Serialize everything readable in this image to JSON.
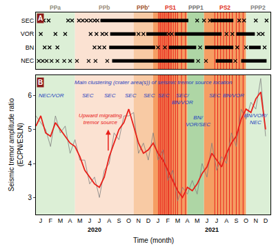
{
  "chart_data": [
    {
      "type": "scatter",
      "panel_label": "A",
      "tick_labels": "y",
      "categories": [
        "SEC",
        "VOR",
        "BN",
        "NEC"
      ],
      "xlim": [
        0,
        24
      ],
      "phases": [
        {
          "label": "PPa",
          "start": 0,
          "end": 4,
          "color": "#dcefd6",
          "label_color": "#8c8c7a"
        },
        {
          "label": "PPb",
          "start": 4,
          "end": 10,
          "color": "#fbe2d2",
          "label_color": "#9c8c7a"
        },
        {
          "label": "PPb'",
          "start": 10,
          "end": 12,
          "color": "#f8caa4",
          "label_color": "#a0522d"
        },
        {
          "label": "PS1",
          "start": 12,
          "end": 15.5,
          "color": "#f59e63",
          "label_color": "#e03020"
        },
        {
          "label": "PPP1",
          "start": 15.5,
          "end": 17.2,
          "color": "#aed6a5",
          "label_color": "#707070"
        },
        {
          "label": "PS2",
          "start": 17.2,
          "end": 21.5,
          "color": "#f59e63",
          "label_color": "#e03020"
        },
        {
          "label": "PPP2",
          "start": 21.5,
          "end": 24,
          "color": "#dcefd6",
          "label_color": "#808080"
        }
      ],
      "eruptions": {
        "color": "#e8201a",
        "x": [
          12.55,
          12.7,
          12.8,
          12.95,
          13.1,
          13.2,
          13.35,
          13.5,
          13.6,
          13.75,
          13.9,
          14.1,
          14.3,
          14.5,
          14.9,
          15.3,
          18.3,
          18.6,
          18.9,
          19.2,
          19.5,
          19.8,
          20.1,
          20.5,
          20.8,
          21.2
        ]
      },
      "series": [
        {
          "category": "SEC",
          "color": "#000000",
          "marker": "x",
          "line_style": "solid",
          "points": [
            0.8,
            1.3,
            3.3,
            3.7,
            4.4,
            4.8,
            5.2,
            5.6,
            6.0,
            6.3,
            16.5,
            17.2,
            17.8,
            20.8,
            21.3,
            22.5,
            23.6
          ],
          "segments": [
            [
              6.6,
              15.6
            ],
            [
              17.9,
              20.2
            ]
          ]
        },
        {
          "category": "VOR",
          "color": "#000000",
          "marker": "x",
          "line_style": "solid",
          "points": [
            0.5,
            2.0,
            3.0,
            5.6,
            6.2,
            6.8,
            7.2,
            10.5,
            11.0,
            13.6,
            13.9,
            19.5,
            20.1,
            22.8,
            23.2
          ],
          "segments": [
            [
              7.6,
              10.2
            ],
            [
              11.3,
              13.4
            ],
            [
              14.2,
              19.0
            ],
            [
              20.5,
              22.4
            ]
          ]
        },
        {
          "category": "BN",
          "color": "#000000",
          "marker": "x",
          "line_style": "solid",
          "points": [
            0.9,
            1.4,
            2.2,
            6.0,
            6.5,
            7.0,
            12.5,
            13.2,
            16.8,
            20.6,
            21.5,
            23.4
          ],
          "segments": [
            [
              7.5,
              12.2
            ],
            [
              13.6,
              16.4
            ],
            [
              17.3,
              20.2
            ],
            [
              21.8,
              23.0
            ]
          ]
        },
        {
          "category": "NEC",
          "color": "#000000",
          "marker": "x",
          "line_style": "solid",
          "points": [
            0.3,
            0.7,
            1.1,
            1.6,
            2.2,
            2.9,
            3.5,
            4.2,
            5.4,
            6.1,
            7.3,
            16.6,
            17.4,
            20.4
          ],
          "segments": [
            [
              7.8,
              16.2
            ],
            [
              18.4,
              20.1
            ],
            [
              21.0,
              23.6
            ]
          ]
        }
      ]
    },
    {
      "type": "line",
      "panel_label": "B",
      "xlabel": "Time (month)",
      "ylabel": "Seismic tremor amplitude ratio (ECPN/ESLN)",
      "x": [
        0,
        0.5,
        1,
        1.5,
        2,
        2.5,
        3,
        3.5,
        4,
        4.5,
        5,
        5.5,
        6,
        6.5,
        7,
        7.5,
        8,
        8.5,
        9,
        9.5,
        10,
        10.5,
        11,
        11.5,
        12,
        12.5,
        13,
        13.5,
        14,
        14.5,
        15,
        15.5,
        16,
        16.5,
        17,
        17.5,
        18,
        18.5,
        19,
        19.5,
        20,
        20.5,
        21,
        21.5,
        22,
        22.5,
        23,
        23.5
      ],
      "xlim": [
        0,
        24
      ],
      "xticks": [
        {
          "value": 0.5,
          "label": "J"
        },
        {
          "value": 1.5,
          "label": "F"
        },
        {
          "value": 2.5,
          "label": "M"
        },
        {
          "value": 3.5,
          "label": "A"
        },
        {
          "value": 4.5,
          "label": "M"
        },
        {
          "value": 5.5,
          "label": "J"
        },
        {
          "value": 6.5,
          "label": "J"
        },
        {
          "value": 7.5,
          "label": "A"
        },
        {
          "value": 8.5,
          "label": "S"
        },
        {
          "value": 9.5,
          "label": "O"
        },
        {
          "value": 10.5,
          "label": "N"
        },
        {
          "value": 11.5,
          "label": "D"
        },
        {
          "value": 12.5,
          "label": "J"
        },
        {
          "value": 13.5,
          "label": "F"
        },
        {
          "value": 14.5,
          "label": "M"
        },
        {
          "value": 15.5,
          "label": "A"
        },
        {
          "value": 16.5,
          "label": "M"
        },
        {
          "value": 17.5,
          "label": "J"
        },
        {
          "value": 18.5,
          "label": "J"
        },
        {
          "value": 19.5,
          "label": "A"
        },
        {
          "value": 20.5,
          "label": "S"
        },
        {
          "value": 21.5,
          "label": "O"
        },
        {
          "value": 22.5,
          "label": "N"
        },
        {
          "value": 23.5,
          "label": "D"
        }
      ],
      "year_labels": [
        {
          "value": 6,
          "label": "2020"
        },
        {
          "value": 18,
          "label": "2021"
        }
      ],
      "ylim": [
        2.5,
        6.6
      ],
      "yticks": [
        3,
        4,
        5,
        6
      ],
      "grid": false,
      "series": [
        {
          "color": "#7f7f7f",
          "line_style": "thin",
          "values": [
            5.4,
            5.2,
            5.0,
            4.5,
            5.4,
            4.9,
            5.1,
            4.3,
            4.7,
            4.1,
            4.1,
            3.4,
            3.6,
            3.0,
            3.8,
            4.0,
            4.9,
            4.7,
            5.4,
            5.4,
            5.5,
            4.3,
            4.6,
            4.1,
            4.9,
            4.1,
            4.4,
            3.5,
            3.8,
            2.9,
            3.3,
            3.1,
            3.5,
            3.1,
            4.0,
            3.6,
            4.6,
            3.8,
            4.2,
            4.0,
            4.9,
            4.5,
            5.6,
            5.3,
            5.8,
            5.6,
            6.5,
            4.8
          ]
        },
        {
          "color": "#e8201a",
          "line_style": "thick",
          "values": [
            5.1,
            5.4,
            4.9,
            4.8,
            5.2,
            5.0,
            4.8,
            4.6,
            4.5,
            4.2,
            3.8,
            3.6,
            3.4,
            3.3,
            3.6,
            4.2,
            4.6,
            5.0,
            5.2,
            5.6,
            5.1,
            4.6,
            4.3,
            4.4,
            4.6,
            4.3,
            4.1,
            3.8,
            3.5,
            3.2,
            3.0,
            3.3,
            3.2,
            3.4,
            3.7,
            3.9,
            4.3,
            4.1,
            3.9,
            4.3,
            4.6,
            4.8,
            5.3,
            5.6,
            5.5,
            5.9,
            6.1,
            5.0
          ]
        }
      ],
      "annotations": [
        {
          "lines": [
            "Main clustering (crater area(s)) of seismic tremor source location"
          ],
          "x": 12,
          "y": 6.38,
          "color": "#1f3fbf"
        },
        {
          "lines": [
            "NEC/VOR"
          ],
          "x": 1.6,
          "y": 6.0,
          "color": "#1f3fbf"
        },
        {
          "lines": [
            "SEC"
          ],
          "x": 5.3,
          "y": 6.0,
          "color": "#1f3fbf"
        },
        {
          "lines": [
            "SEC"
          ],
          "x": 7.6,
          "y": 6.0,
          "color": "#1f3fbf"
        },
        {
          "lines": [
            "SEC"
          ],
          "x": 9.7,
          "y": 6.0,
          "color": "#1f3fbf"
        },
        {
          "lines": [
            "SEC"
          ],
          "x": 11.6,
          "y": 6.0,
          "color": "#1f3fbf"
        },
        {
          "lines": [
            "SEC"
          ],
          "x": 13.1,
          "y": 6.0,
          "color": "#1f3fbf"
        },
        {
          "lines": [
            "SEC/",
            "BN/VOR"
          ],
          "x": 15.0,
          "y": 5.9,
          "color": "#1f3fbf"
        },
        {
          "lines": [
            "BN/",
            "VOR/SEC"
          ],
          "x": 16.6,
          "y": 5.25,
          "color": "#1f3fbf"
        },
        {
          "lines": [
            "SEC"
          ],
          "x": 18.3,
          "y": 6.0,
          "color": "#1f3fbf"
        },
        {
          "lines": [
            "BN/VOR"
          ],
          "x": 20.2,
          "y": 6.0,
          "color": "#1f3fbf"
        },
        {
          "lines": [
            "BN/VOR/",
            "NEC"
          ],
          "x": 22.5,
          "y": 5.3,
          "color": "#1f3fbf"
        },
        {
          "lines": [
            "Upward migrating",
            "tremor source"
          ],
          "x": 6.6,
          "y": 5.3,
          "color": "#e8201a"
        }
      ],
      "arrows": [
        {
          "x": 7.4,
          "y_from": 4.35,
          "y_to": 5.0,
          "color": "#e8201a"
        }
      ]
    }
  ]
}
